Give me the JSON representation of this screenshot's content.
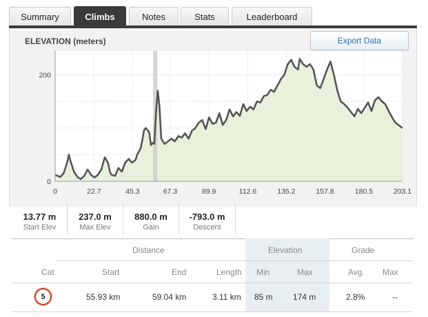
{
  "tabs": [
    {
      "label": "Summary"
    },
    {
      "label": "Climbs"
    },
    {
      "label": "Notes"
    },
    {
      "label": "Stats"
    },
    {
      "label": "Leaderboard"
    }
  ],
  "active_tab": "Climbs",
  "panel": {
    "elevation_label": "ELEVATION (meters)",
    "export_label": "Export Data"
  },
  "chart_data": {
    "type": "area",
    "ylabel": "",
    "xlabel": "",
    "x_ticks": [
      "0",
      "22.7",
      "45.3",
      "67.3",
      "89.9",
      "112.6",
      "135.2",
      "157.8",
      "180.5",
      "203.1"
    ],
    "y_ticks": [
      "0",
      "200"
    ],
    "xlim": [
      0,
      203.1
    ],
    "ylim": [
      0,
      237
    ],
    "highlight_x": 58.5,
    "x": [
      0,
      3,
      5,
      7,
      8,
      9,
      11,
      13,
      15,
      17,
      19,
      21,
      23,
      25,
      27,
      29,
      31,
      32,
      33,
      35,
      37,
      39,
      41,
      43,
      45,
      47,
      48,
      50,
      51,
      52,
      53,
      55,
      56,
      57,
      58,
      59,
      60,
      61,
      62,
      64,
      66,
      68,
      70,
      72,
      74,
      76,
      78,
      80,
      82,
      84,
      86,
      88,
      90,
      92,
      94,
      96,
      98,
      100,
      102,
      104,
      106,
      108,
      110,
      112,
      114,
      116,
      118,
      120,
      122,
      124,
      126,
      128,
      130,
      132,
      134,
      136,
      138,
      140,
      142,
      143,
      145,
      147,
      149,
      151,
      153,
      155,
      157,
      159,
      161,
      163,
      165,
      167,
      169,
      171,
      173,
      175,
      177,
      179,
      181,
      183,
      185,
      187,
      189,
      191,
      193,
      195,
      197,
      199,
      201,
      203
    ],
    "y": [
      12,
      8,
      15,
      35,
      50,
      38,
      18,
      8,
      4,
      10,
      22,
      12,
      7,
      12,
      22,
      45,
      34,
      18,
      12,
      10,
      25,
      18,
      35,
      42,
      35,
      40,
      50,
      62,
      78,
      96,
      100,
      92,
      68,
      72,
      70,
      130,
      170,
      140,
      80,
      70,
      75,
      80,
      75,
      85,
      82,
      90,
      80,
      95,
      100,
      110,
      115,
      98,
      120,
      108,
      110,
      128,
      106,
      115,
      135,
      122,
      130,
      123,
      145,
      132,
      140,
      135,
      150,
      148,
      160,
      162,
      172,
      168,
      180,
      192,
      200,
      220,
      228,
      215,
      210,
      230,
      220,
      215,
      220,
      210,
      180,
      175,
      192,
      210,
      225,
      200,
      170,
      150,
      145,
      138,
      130,
      122,
      136,
      128,
      138,
      148,
      132,
      152,
      158,
      150,
      145,
      132,
      120,
      110,
      105,
      100
    ]
  },
  "stats": [
    {
      "value": "13.77 m",
      "label": "Start Elev"
    },
    {
      "value": "237.0 m",
      "label": "Max Elev"
    },
    {
      "value": "880.0 m",
      "label": "Gain"
    },
    {
      "value": "-793.0 m",
      "label": "Descent"
    }
  ],
  "climb_table": {
    "group_headers": {
      "distance": "Distance",
      "elevation": "Elevation",
      "grade": "Grade"
    },
    "columns": {
      "cat": "Cat",
      "start": "Start",
      "end": "End",
      "length": "Length",
      "min": "Min",
      "max": "Max",
      "avg": "Avg.",
      "grade_max": "Max"
    },
    "rows": [
      {
        "cat": "5",
        "start": "55.93 km",
        "end": "59.04 km",
        "length": "3.11 km",
        "min": "85 m",
        "max": "174 m",
        "avg": "2.8%",
        "grade_max": "--"
      }
    ]
  },
  "colors": {
    "tab_active_bg": "#3a3a3a",
    "area_fill": "#e8f1dc",
    "line": "#555555",
    "export_text": "#2a6bb5",
    "elevation_highlight": "#e8eff2",
    "badge_ring": "#d83b1e"
  }
}
